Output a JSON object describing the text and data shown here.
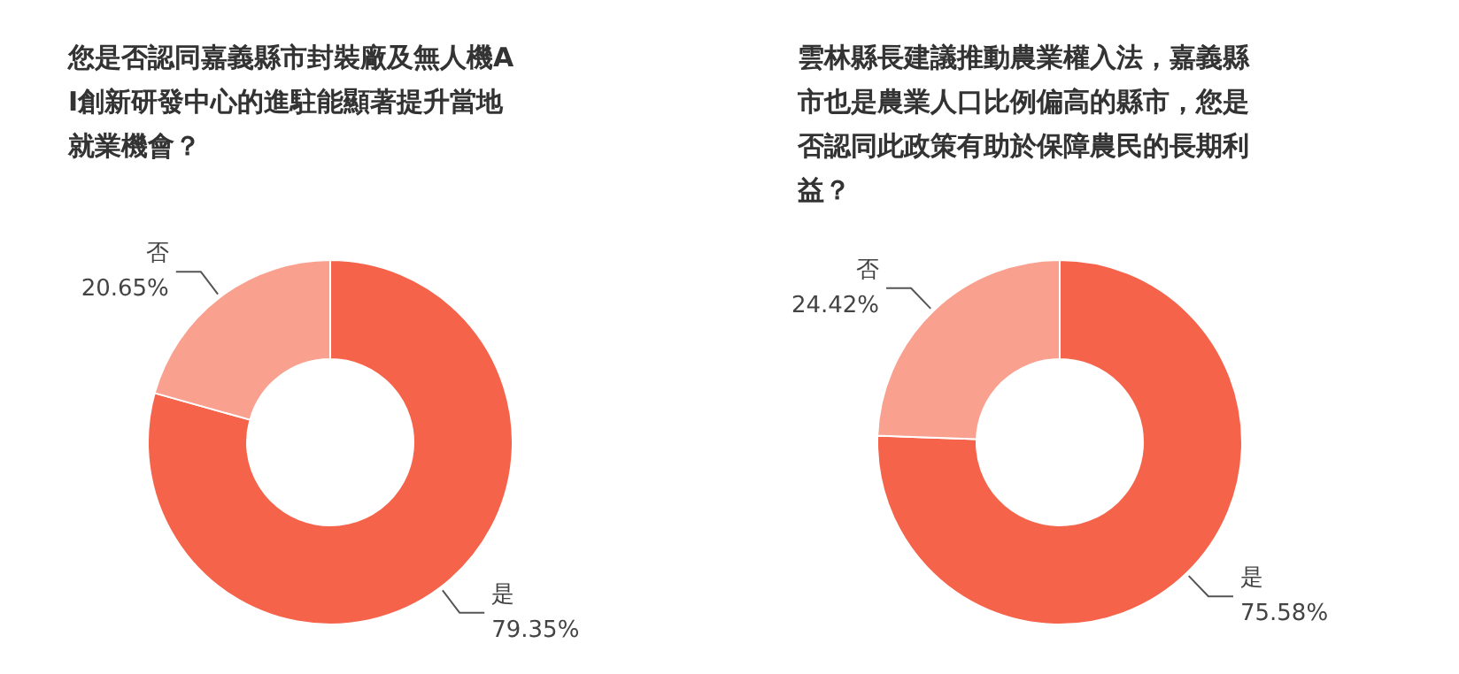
{
  "chart_data": [
    {
      "type": "donut",
      "title": "您是否認同嘉義縣市封裝廠及無人機AI創新研發中心的進駐能顯著提升當地就業機會？",
      "categories": [
        "是",
        "否"
      ],
      "values": [
        79.35,
        20.65
      ],
      "colors": [
        "#f5634a",
        "#f9a08f"
      ],
      "value_labels": [
        "79.35%",
        "20.65%"
      ]
    },
    {
      "type": "donut",
      "title": "雲林縣長建議推動農業權入法，嘉義縣市也是農業人口比例偏高的縣市，您是否認同此政策有助於保障農民的長期利益？",
      "categories": [
        "是",
        "否"
      ],
      "values": [
        75.58,
        24.42
      ],
      "colors": [
        "#f5634a",
        "#f9a08f"
      ],
      "value_labels": [
        "75.58%",
        "24.42%"
      ]
    }
  ]
}
